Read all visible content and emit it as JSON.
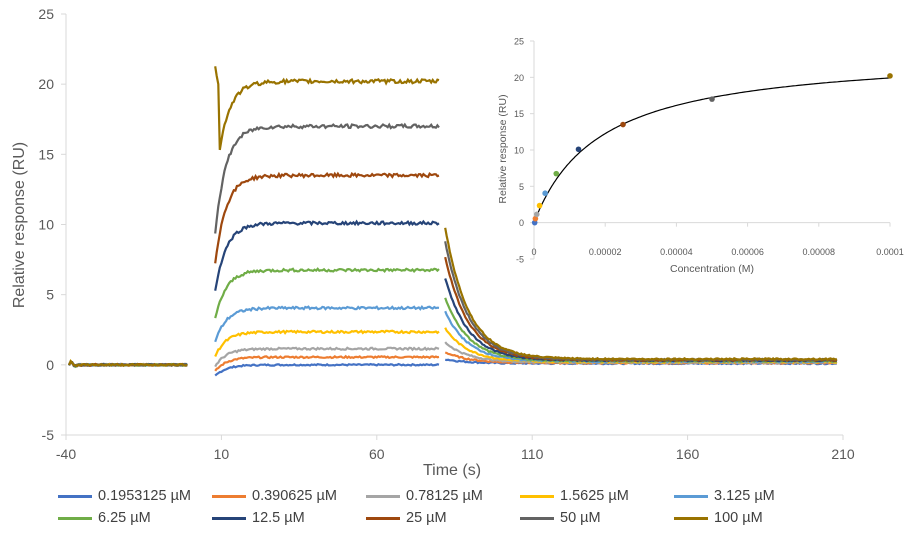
{
  "chart_data": [
    {
      "type": "line",
      "title": "",
      "xlabel": "Time (s)",
      "ylabel": "Relative response (RU)",
      "xlim": [
        -40,
        210
      ],
      "ylim": [
        -5,
        25
      ],
      "xticks": [
        "-40",
        "10",
        "60",
        "110",
        "160",
        "210"
      ],
      "yticks": [
        "-5",
        "0",
        "5",
        "10",
        "15",
        "20",
        "25"
      ],
      "grid": false,
      "legend_position": "bottom",
      "phases": {
        "baseline_end": 0,
        "association_start": 8,
        "association_end": 80,
        "dissociation_start": 82
      },
      "series": [
        {
          "name": "0.1953125 µM",
          "color": "#4472C4",
          "plateau": 0.0,
          "dissoc_peak": 0.4
        },
        {
          "name": "0.390625 µM",
          "color": "#ED7D31",
          "plateau": 0.55,
          "dissoc_peak": 0.9
        },
        {
          "name": "0.78125 µM",
          "color": "#A5A5A5",
          "plateau": 1.15,
          "dissoc_peak": 1.6
        },
        {
          "name": "1.5625 µM",
          "color": "#FFC000",
          "plateau": 2.35,
          "dissoc_peak": 2.6
        },
        {
          "name": "3.125 µM",
          "color": "#5B9BD5",
          "plateau": 4.05,
          "dissoc_peak": 3.8
        },
        {
          "name": "6.25 µM",
          "color": "#70AD47",
          "plateau": 6.75,
          "dissoc_peak": 4.8
        },
        {
          "name": "12.5 µM",
          "color": "#264478",
          "plateau": 10.1,
          "dissoc_peak": 6.2
        },
        {
          "name": "25 µM",
          "color": "#9E480E",
          "plateau": 13.5,
          "dissoc_peak": 7.7
        },
        {
          "name": "50 µM",
          "color": "#636363",
          "plateau": 17.0,
          "dissoc_peak": 8.8
        },
        {
          "name": "100 µM",
          "color": "#997300",
          "plateau": 20.2,
          "dissoc_peak": 9.8
        }
      ]
    },
    {
      "type": "scatter",
      "title": "",
      "xlabel": "Concentration (M)",
      "ylabel": "Relative response (RU)",
      "xlim": [
        0,
        0.0001
      ],
      "ylim": [
        -5,
        25
      ],
      "xticks": [
        "0",
        "0.00002",
        "0.00004",
        "0.00006",
        "0.00008",
        "0.0001"
      ],
      "yticks": [
        "-5",
        "0",
        "5",
        "10",
        "15",
        "20",
        "25"
      ],
      "grid": false,
      "fit_curve": {
        "color": "#000000",
        "rmax": 23.6,
        "kd": 1.85e-05
      },
      "points": [
        {
          "x": 1.9531e-07,
          "y": 0.0,
          "color": "#4472C4"
        },
        {
          "x": 3.9063e-07,
          "y": 0.55,
          "color": "#ED7D31"
        },
        {
          "x": 7.8125e-07,
          "y": 1.15,
          "color": "#A5A5A5"
        },
        {
          "x": 1.5625e-06,
          "y": 2.35,
          "color": "#FFC000"
        },
        {
          "x": 3.125e-06,
          "y": 4.05,
          "color": "#5B9BD5"
        },
        {
          "x": 6.25e-06,
          "y": 6.75,
          "color": "#70AD47"
        },
        {
          "x": 1.25e-05,
          "y": 10.1,
          "color": "#264478"
        },
        {
          "x": 2.5e-05,
          "y": 13.5,
          "color": "#9E480E"
        },
        {
          "x": 5e-05,
          "y": 17.0,
          "color": "#636363"
        },
        {
          "x": 0.0001,
          "y": 20.2,
          "color": "#997300"
        }
      ]
    }
  ]
}
